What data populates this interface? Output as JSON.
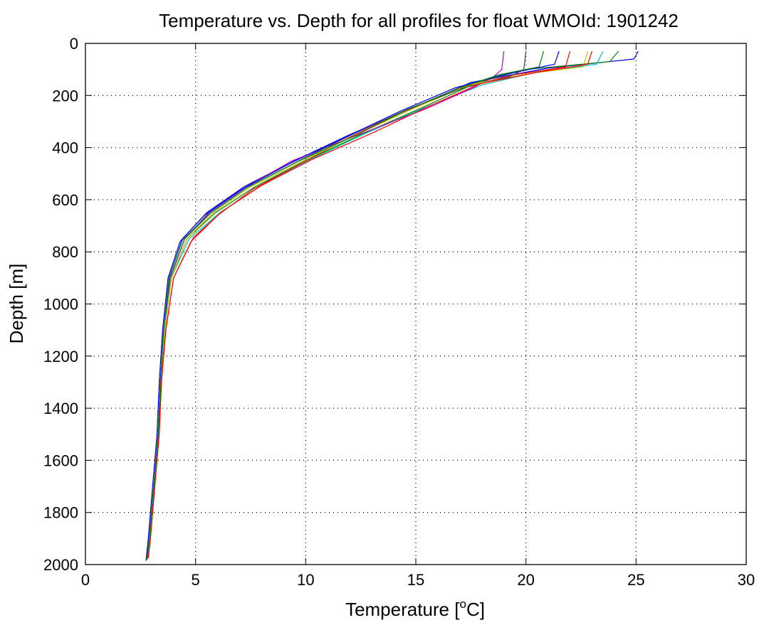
{
  "chart_data": {
    "type": "line",
    "title": "Temperature vs. Depth for all profiles for float WMOId: 1901242",
    "xlabel_prefix": "Temperature [",
    "xlabel_sup": "o",
    "xlabel_suffix": "C]",
    "ylabel": "Depth [m]",
    "xlim": [
      0,
      30
    ],
    "ylim": [
      2000,
      0
    ],
    "y_reversed": true,
    "grid": true,
    "xticks": [
      0,
      5,
      10,
      15,
      20,
      25,
      30
    ],
    "xtick_labels": [
      "0",
      "5",
      "10",
      "15",
      "20",
      "25",
      "30"
    ],
    "yticks": [
      0,
      200,
      400,
      600,
      800,
      1000,
      1200,
      1400,
      1600,
      1800,
      2000
    ],
    "ytick_labels": [
      "0",
      "200",
      "400",
      "600",
      "800",
      "1000",
      "1200",
      "1400",
      "1600",
      "1800",
      "2000"
    ],
    "series_colors": [
      "#0000ff",
      "#008000",
      "#ff0000",
      "#00bfbf",
      "#bf00bf",
      "#bfbf00",
      "#404040"
    ],
    "series": [
      {
        "color": "#0000ff",
        "x": [
          25.1,
          24.9,
          21.0,
          17.5,
          14.8,
          12.0,
          9.5,
          7.2,
          5.5,
          4.4,
          3.8,
          3.55,
          3.4,
          3.3,
          3.1,
          2.9,
          2.8
        ],
        "y": [
          30,
          60,
          95,
          150,
          250,
          350,
          450,
          550,
          650,
          750,
          900,
          1100,
          1300,
          1500,
          1700,
          1900,
          1980
        ]
      },
      {
        "color": "#008000",
        "x": [
          24.2,
          23.8,
          20.0,
          17.8,
          15.2,
          12.5,
          10.0,
          7.7,
          5.9,
          4.6,
          3.9,
          3.6,
          3.45,
          3.35,
          3.15,
          2.95,
          2.85
        ],
        "y": [
          30,
          70,
          100,
          150,
          250,
          350,
          450,
          550,
          650,
          750,
          900,
          1100,
          1300,
          1500,
          1700,
          1900,
          1975
        ]
      },
      {
        "color": "#ff0000",
        "x": [
          22.0,
          21.8,
          19.5,
          17.0,
          14.5,
          12.0,
          9.8,
          7.6,
          6.0,
          4.8,
          4.0,
          3.65,
          3.45,
          3.3,
          3.1,
          2.9,
          2.8
        ],
        "y": [
          30,
          90,
          120,
          170,
          260,
          360,
          460,
          560,
          660,
          760,
          900,
          1100,
          1300,
          1500,
          1700,
          1900,
          1980
        ]
      },
      {
        "color": "#00bfbf",
        "x": [
          23.5,
          23.2,
          20.5,
          18.0,
          15.3,
          12.6,
          10.1,
          7.9,
          6.1,
          4.7,
          3.9,
          3.6,
          3.4,
          3.3,
          3.1,
          2.9,
          2.8
        ],
        "y": [
          30,
          80,
          110,
          160,
          250,
          350,
          450,
          550,
          650,
          750,
          900,
          1100,
          1300,
          1500,
          1700,
          1900,
          1975
        ]
      },
      {
        "color": "#bf00bf",
        "x": [
          19.0,
          18.9,
          18.5,
          17.6,
          15.5,
          12.4,
          9.4,
          7.3,
          5.6,
          4.5,
          3.85,
          3.55,
          3.4,
          3.3,
          3.1,
          2.9,
          2.8
        ],
        "y": [
          30,
          100,
          130,
          170,
          250,
          350,
          450,
          550,
          650,
          750,
          900,
          1100,
          1300,
          1500,
          1700,
          1900,
          1980
        ]
      },
      {
        "color": "#bfbf00",
        "x": [
          22.8,
          22.6,
          20.2,
          17.4,
          14.9,
          12.3,
          9.9,
          7.5,
          5.8,
          4.6,
          3.9,
          3.6,
          3.4,
          3.3,
          3.1,
          2.9,
          2.8
        ],
        "y": [
          30,
          90,
          115,
          160,
          250,
          350,
          450,
          550,
          650,
          750,
          900,
          1100,
          1300,
          1500,
          1700,
          1900,
          1980
        ]
      },
      {
        "color": "#404040",
        "x": [
          20.0,
          19.9,
          19.2,
          17.2,
          14.7,
          12.1,
          9.7,
          7.4,
          5.7,
          4.5,
          3.85,
          3.55,
          3.4,
          3.3,
          3.1,
          2.9,
          2.8
        ],
        "y": [
          30,
          100,
          130,
          170,
          250,
          350,
          450,
          550,
          650,
          750,
          900,
          1100,
          1300,
          1500,
          1700,
          1900,
          1980
        ]
      },
      {
        "color": "#0000ff",
        "x": [
          21.5,
          21.3,
          19.0,
          16.8,
          14.3,
          11.8,
          9.3,
          7.1,
          5.4,
          4.3,
          3.75,
          3.5,
          3.35,
          3.25,
          3.05,
          2.85,
          2.75
        ],
        "y": [
          30,
          80,
          120,
          170,
          260,
          360,
          460,
          560,
          660,
          760,
          900,
          1100,
          1300,
          1500,
          1700,
          1900,
          1985
        ]
      },
      {
        "color": "#008000",
        "x": [
          20.8,
          20.6,
          18.8,
          17.0,
          14.6,
          12.2,
          9.6,
          7.3,
          5.6,
          4.4,
          3.8,
          3.55,
          3.4,
          3.3,
          3.1,
          2.9,
          2.8
        ],
        "y": [
          30,
          90,
          120,
          170,
          255,
          355,
          455,
          555,
          655,
          755,
          900,
          1100,
          1300,
          1500,
          1700,
          1900,
          1980
        ]
      },
      {
        "color": "#ff0000",
        "x": [
          23.0,
          22.8,
          20.6,
          17.9,
          15.5,
          13.0,
          10.3,
          8.0,
          6.2,
          4.9,
          4.0,
          3.65,
          3.45,
          3.35,
          3.15,
          2.95,
          2.85
        ],
        "y": [
          30,
          80,
          110,
          155,
          245,
          345,
          445,
          545,
          645,
          745,
          900,
          1100,
          1300,
          1500,
          1700,
          1900,
          1975
        ]
      }
    ]
  }
}
